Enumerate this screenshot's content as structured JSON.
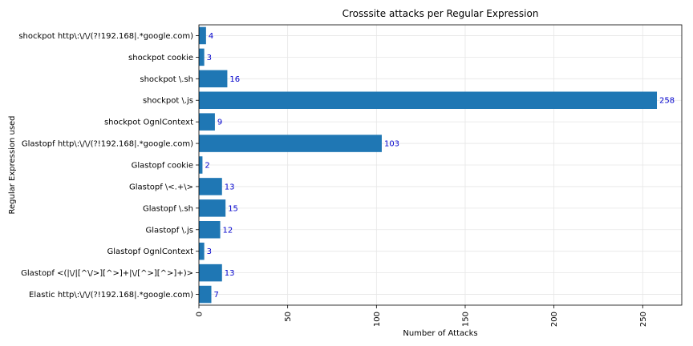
{
  "chart_data": {
    "type": "bar",
    "orientation": "horizontal",
    "title": "Crosssite attacks per Regular Expression",
    "xlabel": "Number of Attacks",
    "ylabel": "Regular Expression used",
    "xlim": [
      0,
      272
    ],
    "xticks": [
      "0",
      "50",
      "100",
      "150",
      "200",
      "250"
    ],
    "grid": true,
    "legend": "none",
    "bar_color": "#1f77b4",
    "label_color": "#0000cc",
    "categories": [
      "Elastic http\\:\\/\\/(?!192.168|.*google.com)",
      "Glastopf <(|\\/|[^\\/>][^>]+|\\/[^>][^>]+)>",
      "Glastopf OgnlContext",
      "Glastopf \\.js",
      "Glastopf \\.sh",
      "Glastopf \\<.+\\>",
      "Glastopf cookie",
      "Glastopf http\\:\\/\\/(?!192.168|.*google.com)",
      "shockpot OgnlContext",
      "shockpot \\.js",
      "shockpot \\.sh",
      "shockpot cookie",
      "shockpot http\\:\\/\\/(?!192.168|.*google.com)"
    ],
    "values": [
      7,
      13,
      3,
      12,
      15,
      13,
      2,
      103,
      9,
      258,
      16,
      3,
      4
    ],
    "value_labels": [
      "7",
      "13",
      "3",
      "12",
      "15",
      "13",
      "2",
      "103",
      "9",
      "258",
      "16",
      "3",
      "4"
    ]
  }
}
